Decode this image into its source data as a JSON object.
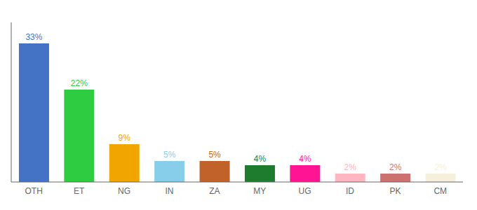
{
  "chart_data": {
    "type": "bar",
    "categories": [
      "OTH",
      "ET",
      "NG",
      "IN",
      "ZA",
      "MY",
      "UG",
      "ID",
      "PK",
      "CM"
    ],
    "values": [
      33,
      22,
      9,
      5,
      5,
      4,
      4,
      2,
      2,
      2
    ],
    "value_labels": [
      "33%",
      "22%",
      "9%",
      "5%",
      "5%",
      "4%",
      "4%",
      "2%",
      "2%",
      "2%"
    ],
    "colors": [
      "#4472c4",
      "#2ecc40",
      "#f0a500",
      "#87ceeb",
      "#c0622a",
      "#1e7c2e",
      "#ff1493",
      "#ffb6c1",
      "#cd7070",
      "#f5f0dc"
    ],
    "ylim": [
      0,
      38
    ],
    "data_labels": true,
    "tick_labels": "x",
    "grid": false
  }
}
